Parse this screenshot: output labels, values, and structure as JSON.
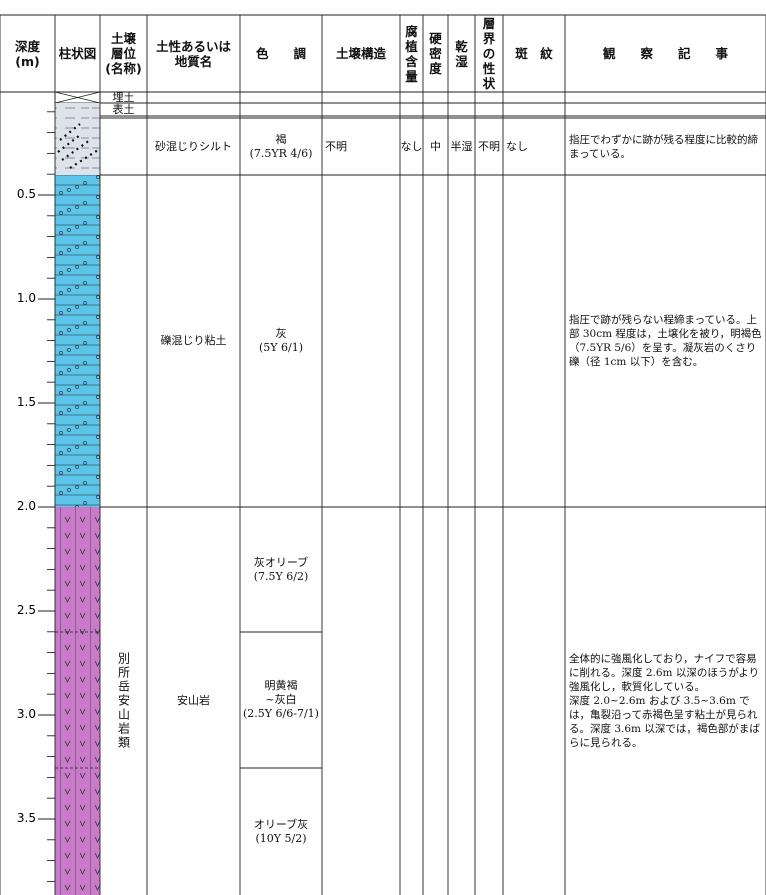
{
  "header": {
    "depth": [
      "深度",
      "(m)"
    ],
    "column": "柱状図",
    "horizon": [
      "土壌",
      "層位",
      "(名称)"
    ],
    "soil": [
      "土性あるいは",
      "地質名"
    ],
    "color": "色　　調",
    "structure": "土壌構造",
    "humus": "腐植含量",
    "hardness": "硬密度",
    "moisture": "乾湿",
    "boundary": "層界の性状",
    "mottles": "斑　紋",
    "observation": "観　　察　　記　　事"
  },
  "depth_labels": [
    "0.5",
    "1.0",
    "1.5",
    "2.0",
    "2.5",
    "3.0",
    "3.5"
  ],
  "layers": [
    {
      "horizon": "埋土"
    },
    {
      "horizon": "表土"
    },
    {
      "soil": "砂混じりシルト",
      "color": [
        [
          "褐",
          "(7.5YR 4/6)"
        ]
      ],
      "structure": "不明",
      "humus": "なし",
      "hardness": "中",
      "moisture": "半湿",
      "boundary": "不明",
      "mottles": "なし",
      "observation": [
        "指圧でわずかに跡が残る程度に比較的締まっている。"
      ]
    },
    {
      "soil": "礫混じり粘土",
      "color": [
        [
          "灰",
          "(5Y 6/1)"
        ]
      ],
      "observation": [
        "指圧で跡が残らない程締まっている。上部 30cm 程度は，土壌化を被り，明褐色（7.5YR 5/6）を呈す。凝灰岩のくさり礫（径 1cm 以下）を含む。"
      ]
    },
    {
      "horizon": "別所岳安山岩類",
      "soil": "安山岩",
      "color": [
        [
          "灰オリーブ",
          "(7.5Y 6/2)"
        ],
        [
          "明黄褐",
          "~灰白",
          "(2.5Y 6/6-7/1)"
        ],
        [
          "オリーブ灰",
          "(10Y 5/2)"
        ]
      ],
      "observation": [
        "全体的に強風化しており，ナイフで容易に削れる。深度 2.6m 以深のほうがより強風化し，軟質化している。",
        "深度 2.0~2.6m および 3.5~3.6m では，亀裂沿って赤褐色呈す粘土が見られる。深度 3.6m 以深では，褐色部がまばらに見られる。"
      ]
    }
  ]
}
